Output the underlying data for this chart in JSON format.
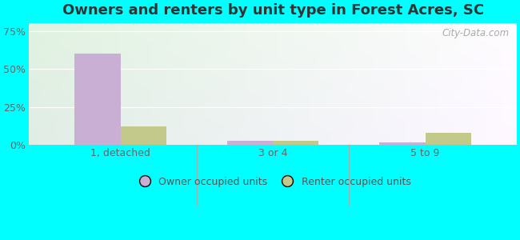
{
  "title": "Owners and renters by unit type in Forest Acres, SC",
  "categories": [
    "1, detached",
    "3 or 4",
    "5 to 9"
  ],
  "owner_values": [
    60,
    2.5,
    1.5
  ],
  "renter_values": [
    12,
    2.5,
    8
  ],
  "owner_color": "#c9afd4",
  "renter_color": "#c2c98a",
  "yticks": [
    0,
    25,
    50,
    75
  ],
  "ytick_labels": [
    "0%",
    "25%",
    "50%",
    "75%"
  ],
  "ylim": [
    0,
    80
  ],
  "bar_width": 0.3,
  "legend_owner": "Owner occupied units",
  "legend_renter": "Renter occupied units",
  "outer_bg": "#00ffff",
  "watermark": "City-Data.com",
  "title_fontsize": 13,
  "tick_fontsize": 9,
  "legend_fontsize": 9
}
